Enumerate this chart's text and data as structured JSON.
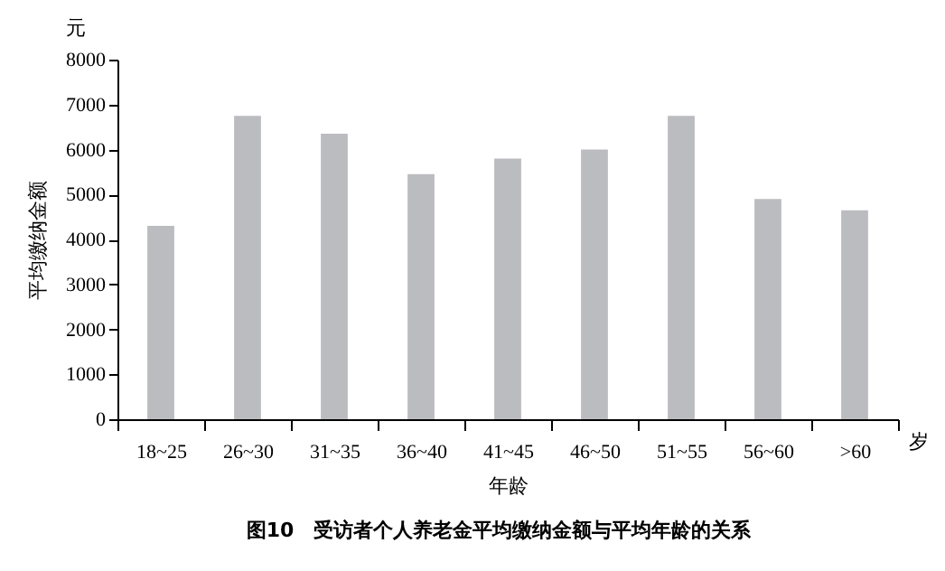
{
  "chart_data": {
    "type": "bar",
    "title": "图10　受访者个人养老金平均缴纳金额与平均年龄的关系",
    "xlabel": "年龄",
    "ylabel": "平均缴纳金额",
    "annotations": [
      "元",
      "岁"
    ],
    "categories": [
      "18~25",
      "26~30",
      "31~35",
      "36~40",
      "41~45",
      "46~50",
      "51~55",
      "56~60",
      ">60"
    ],
    "values": [
      4300,
      6750,
      6350,
      5450,
      5800,
      6000,
      6750,
      4900,
      4650
    ],
    "color": "#bbbcc0",
    "ylim": [
      0,
      8000
    ],
    "yticks": [
      0,
      1000,
      2000,
      3000,
      4000,
      5000,
      6000,
      7000,
      8000
    ],
    "grid": false
  }
}
